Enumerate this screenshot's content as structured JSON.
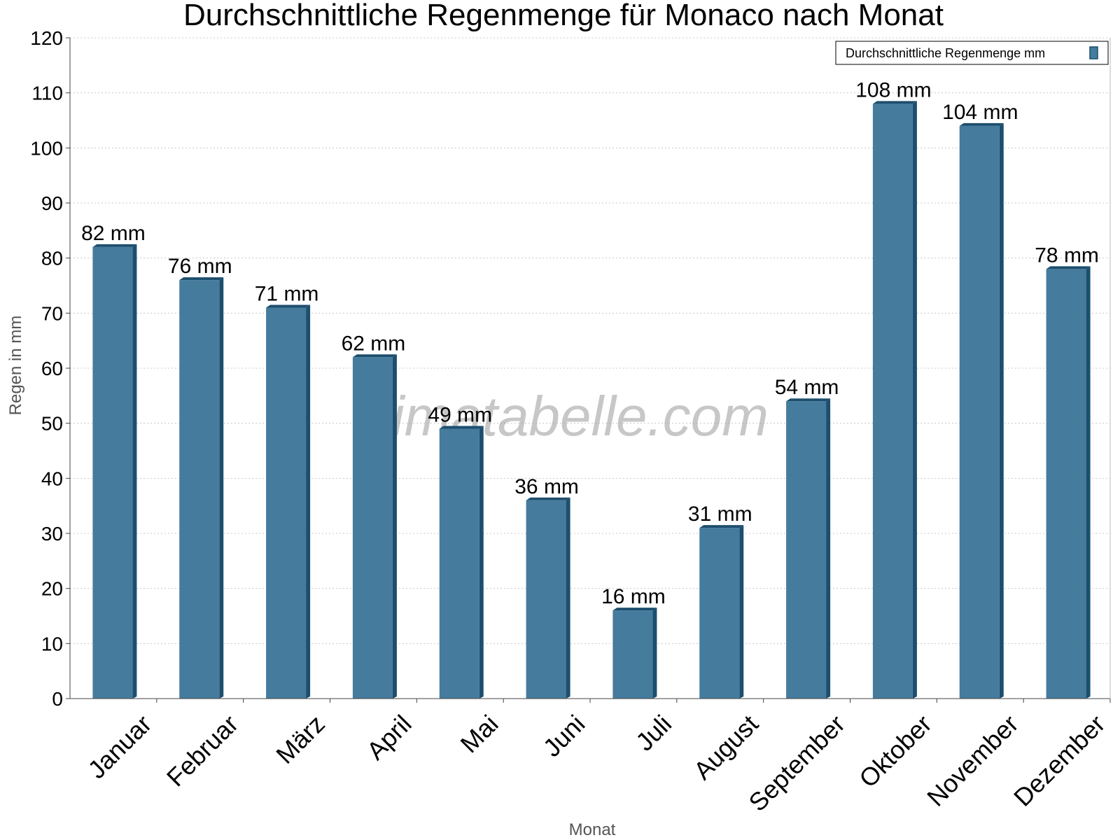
{
  "chart_data": {
    "type": "bar",
    "title": "Durchschnittliche Regenmenge für Monaco nach Monat",
    "xlabel": "Monat",
    "ylabel": "Regen in mm",
    "ylim": [
      0,
      120
    ],
    "yticks": [
      "0",
      "10",
      "20",
      "30",
      "40",
      "50",
      "60",
      "70",
      "80",
      "90",
      "100",
      "110",
      "120"
    ],
    "categories": [
      "Januar",
      "Februar",
      "März",
      "April",
      "Mai",
      "Juni",
      "Juli",
      "August",
      "September",
      "Oktober",
      "November",
      "Dezember"
    ],
    "series": [
      {
        "name": "Durchschnittliche Regenmenge mm",
        "values": [
          82,
          76,
          71,
          62,
          49,
          36,
          16,
          31,
          54,
          108,
          104,
          78
        ],
        "labels": [
          "82 mm",
          "76 mm",
          "71 mm",
          "62 mm",
          "49 mm",
          "36 mm",
          "16 mm",
          "31 mm",
          "54 mm",
          "108 mm",
          "104 mm",
          "78 mm"
        ]
      }
    ],
    "grid": true,
    "legend_position": "top-right",
    "watermark": "klimatabelle.com"
  },
  "colors": {
    "bar_face": "#457b9d",
    "bar_side": "#1d4e6e",
    "grid": "#c8c8c8",
    "axis": "#444444"
  }
}
